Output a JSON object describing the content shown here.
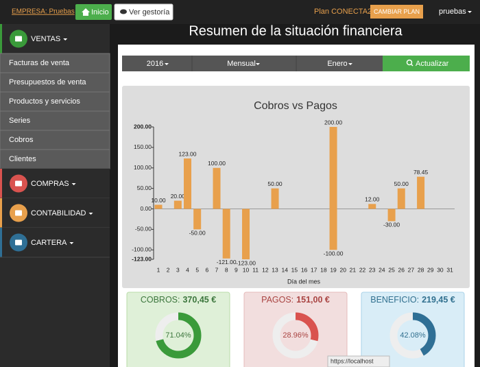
{
  "header": {
    "company": "EMPRESA: Pruebas",
    "home": "Inicio",
    "advisor": "Ver gestoría",
    "plan": "Plan CONECTA2",
    "change_plan": "CAMBIAR PLAN",
    "user": "pruebas"
  },
  "sidebar": {
    "sections": [
      {
        "label": "VENTAS",
        "items": [
          "Facturas de venta",
          "Presupuestos de venta",
          "Productos y servicios",
          "Series",
          "Cobros",
          "Clientes"
        ]
      },
      {
        "label": "COMPRAS"
      },
      {
        "label": "CONTABILIDAD"
      },
      {
        "label": "CARTERA"
      }
    ]
  },
  "page_title": "Resumen de la situación financiera",
  "filters": {
    "year": "2016",
    "period": "Mensual",
    "month": "Enero",
    "update": "Actualizar"
  },
  "chart_data": {
    "type": "bar",
    "title": "Cobros vs Pagos",
    "x_label": "Día del mes",
    "categories": [
      "1",
      "2",
      "3",
      "4",
      "5",
      "6",
      "7",
      "8",
      "9",
      "10",
      "11",
      "12",
      "13",
      "14",
      "15",
      "16",
      "17",
      "18",
      "19",
      "20",
      "21",
      "22",
      "23",
      "24",
      "25",
      "26",
      "27",
      "28",
      "29",
      "30",
      "31"
    ],
    "series": [
      {
        "color": "#e8a04c",
        "values": [
          10,
          null,
          20,
          123,
          null,
          null,
          100,
          null,
          null,
          null,
          null,
          null,
          50,
          null,
          null,
          null,
          null,
          null,
          200,
          null,
          null,
          null,
          12,
          null,
          null,
          50,
          null,
          78.45,
          null,
          null,
          null
        ],
        "value_labels": [
          "10.00",
          null,
          "20.00",
          "123.00",
          null,
          null,
          "100.00",
          null,
          null,
          null,
          null,
          null,
          "50.00",
          null,
          null,
          null,
          null,
          null,
          "200.00",
          null,
          null,
          null,
          "12.00",
          null,
          null,
          "50.00",
          null,
          "78.45",
          null,
          null,
          null
        ]
      },
      {
        "color": "#e8a04c",
        "values": [
          null,
          null,
          null,
          null,
          -50,
          null,
          null,
          -121,
          null,
          -123,
          null,
          null,
          null,
          null,
          null,
          null,
          null,
          null,
          -100,
          null,
          null,
          null,
          null,
          null,
          -30,
          null,
          null,
          null,
          null,
          null,
          null
        ],
        "value_labels": [
          null,
          null,
          null,
          null,
          "-50.00",
          null,
          null,
          "-121.00",
          null,
          "-123.00",
          null,
          null,
          null,
          null,
          null,
          null,
          null,
          null,
          "-100.00",
          null,
          null,
          null,
          null,
          null,
          "-30.00",
          null,
          null,
          null,
          null,
          null,
          null
        ]
      }
    ],
    "ylim": [
      -123,
      200
    ],
    "yticks": [
      {
        "value": 200,
        "label": "200.00"
      },
      {
        "value": 150,
        "label": "150.00"
      },
      {
        "value": 100,
        "label": "100.00"
      },
      {
        "value": 50,
        "label": "50.00"
      },
      {
        "value": 0,
        "label": "0.00"
      },
      {
        "value": -50,
        "label": "-50.00"
      },
      {
        "value": -100,
        "label": "-100.00"
      },
      {
        "value": -123,
        "label": "-123.00"
      }
    ]
  },
  "cards": [
    {
      "label": "COBROS:",
      "amount": "370,45 €",
      "percent": 71.04,
      "percent_label": "71.04%",
      "color": "#3a9a3a"
    },
    {
      "label": "PAGOS:",
      "amount": "151,00 €",
      "percent": 28.96,
      "percent_label": "28.96%",
      "color": "#d9534f"
    },
    {
      "label": "BENEFICIO:",
      "amount": "219,45 €",
      "percent": 42.08,
      "percent_label": "42.08%",
      "color": "#2f6f95"
    }
  ],
  "status_url": "https://localhost"
}
